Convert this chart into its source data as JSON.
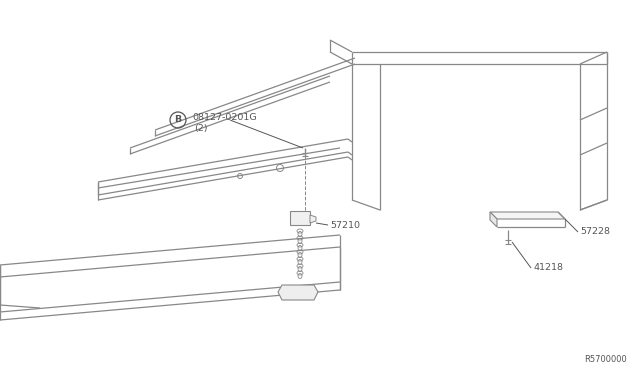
{
  "background_color": "#ffffff",
  "line_color": "#888888",
  "text_color": "#555555",
  "diagram_ref": "R5700000",
  "fig_w": 6.4,
  "fig_h": 3.72,
  "dpi": 100
}
